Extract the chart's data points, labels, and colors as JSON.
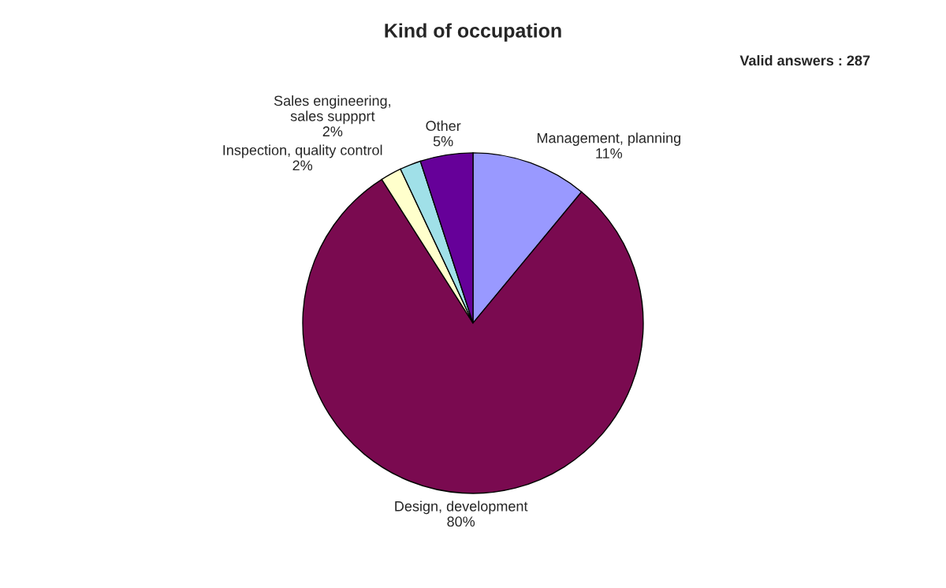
{
  "chart_data": {
    "type": "pie",
    "title": "Kind of occupation",
    "annotations": [
      "Valid answers : 287"
    ],
    "categories": [
      "Management, planning",
      "Design, development",
      "Inspection, quality control",
      "Sales engineering,\nsales suppprt",
      "Other"
    ],
    "values": [
      11,
      80,
      2,
      2,
      5
    ],
    "value_labels": [
      "11%",
      "80%",
      "2%",
      "2%",
      "5%"
    ],
    "colors": [
      "#9999ff",
      "#7a0a50",
      "#ffffcc",
      "#a0e0e8",
      "#660099"
    ]
  }
}
